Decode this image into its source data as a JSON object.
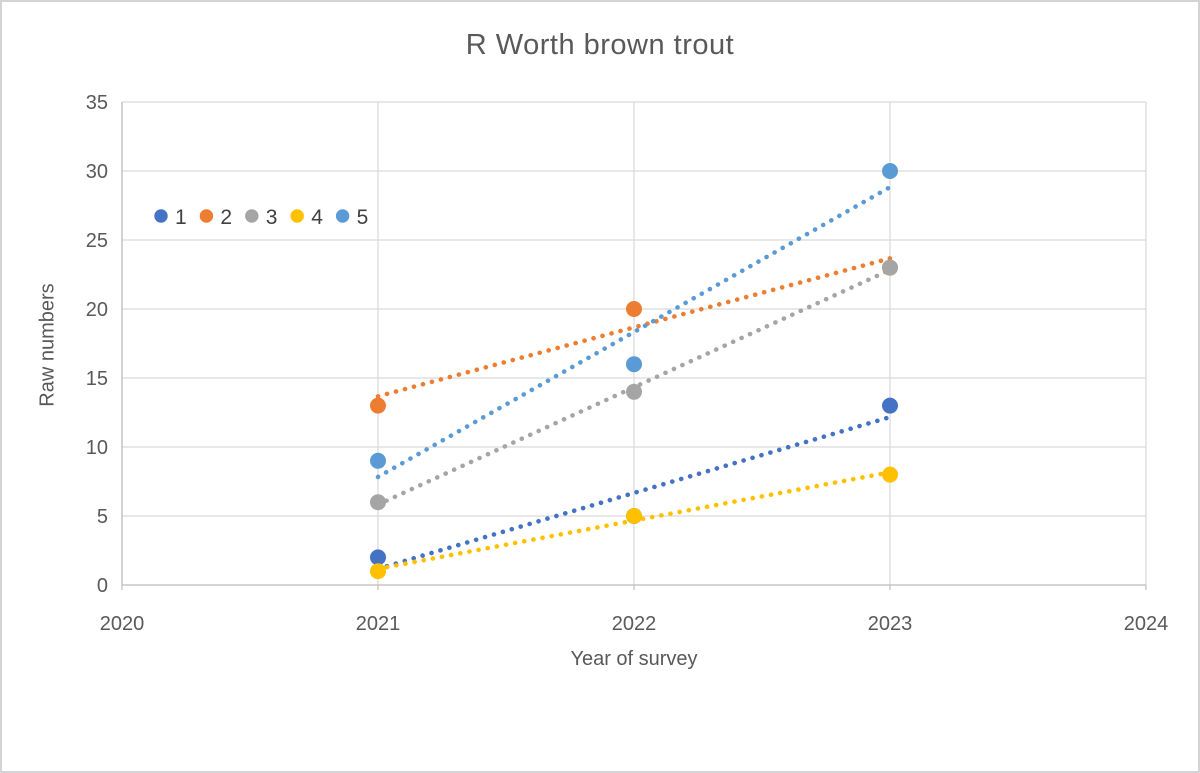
{
  "frame": {
    "background": "#ffffff",
    "border_color": "#d4d4d6"
  },
  "chart_data": {
    "type": "scatter",
    "title": "R Worth brown trout",
    "xlabel": "Year of survey",
    "ylabel": "Raw numbers",
    "xlim": [
      2020,
      2024
    ],
    "ylim": [
      0,
      35
    ],
    "xticks": [
      2020,
      2021,
      2022,
      2023,
      2024
    ],
    "yticks": [
      0,
      5,
      10,
      15,
      20,
      25,
      30,
      35
    ],
    "grid": true,
    "legend_position": "inside-top-left",
    "marker_style": "filled-circle",
    "trendline_style": "round-dotted",
    "colors": {
      "grid": "#d9d9d9",
      "axis": "#bfbfbf",
      "tick_text": "#595959",
      "title_text": "#595959",
      "legend_text": "#404040"
    },
    "series": [
      {
        "name": "1",
        "color": "#4472C4",
        "points": [
          [
            2021,
            2
          ],
          [
            2022,
            5
          ],
          [
            2023,
            13
          ]
        ],
        "occlusion_note": "2022 marker hidden behind series 4 marker",
        "trend": {
          "x": [
            2021,
            2023
          ],
          "values": [
            1.17,
            12.17
          ]
        }
      },
      {
        "name": "2",
        "color": "#ED7D31",
        "points": [
          [
            2021,
            13
          ],
          [
            2022,
            20
          ],
          [
            2023,
            23
          ]
        ],
        "occlusion_note": "2023 marker hidden behind series 3 marker",
        "trend": {
          "x": [
            2021,
            2023
          ],
          "values": [
            13.67,
            23.67
          ]
        }
      },
      {
        "name": "3",
        "color": "#A5A5A5",
        "points": [
          [
            2021,
            6
          ],
          [
            2022,
            14
          ],
          [
            2023,
            23
          ]
        ],
        "trend": {
          "x": [
            2021,
            2023
          ],
          "values": [
            5.83,
            22.83
          ]
        }
      },
      {
        "name": "4",
        "color": "#FFC000",
        "points": [
          [
            2021,
            1
          ],
          [
            2022,
            5
          ],
          [
            2023,
            8
          ]
        ],
        "trend": {
          "x": [
            2021,
            2023
          ],
          "values": [
            1.17,
            8.17
          ]
        }
      },
      {
        "name": "5",
        "color": "#5B9BD5",
        "points": [
          [
            2021,
            9
          ],
          [
            2022,
            16
          ],
          [
            2023,
            30
          ]
        ],
        "trend": {
          "x": [
            2021,
            2023
          ],
          "values": [
            7.83,
            28.83
          ]
        }
      }
    ]
  }
}
